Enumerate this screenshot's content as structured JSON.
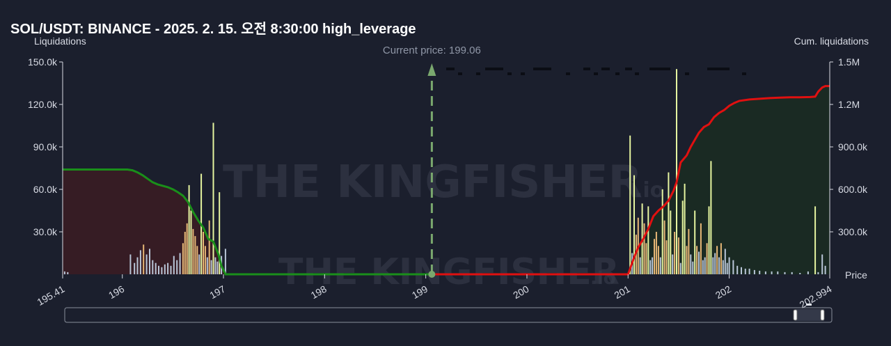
{
  "title": "SOL/USDT: BINANCE - 2025. 2. 15. 오전 8:30:00 high_leverage",
  "watermark": {
    "brand": "THE KINGFISHER",
    "suffix": ".io"
  },
  "chart_data": {
    "type": "bar",
    "title": "SOL/USDT: BINANCE - 2025. 2. 15. 오전 8:30:00 high_leverage",
    "x_range": [
      195.41,
      202.994
    ],
    "x_ticks": [
      "195.41",
      "196",
      "197",
      "198",
      "199",
      "200",
      "201",
      "202",
      "202.994"
    ],
    "y_left": {
      "label": "Liquidations",
      "range": [
        0,
        150000
      ],
      "ticks": [
        "150.0k",
        "120.0k",
        "90.0k",
        "60.0k",
        "30.0k"
      ]
    },
    "y_right": {
      "label": "Cum. liquidations",
      "range": [
        0,
        1500000
      ],
      "ticks": [
        "1.5M",
        "1.2M",
        "900.0k",
        "600.0k",
        "300.0k"
      ],
      "bottom_label": "Price"
    },
    "current_price": {
      "label": "Current price: 199.06",
      "value": 199.06
    },
    "colors": {
      "long_line": "#1a8f1a",
      "long_fill": "#3a1c24",
      "short_line": "#e01010",
      "short_fill": "#1b2b22",
      "bar_high": "#e6f5a0",
      "bar_mid": "#e8b877",
      "bar_low": "#b9c6d8",
      "current_price": "#7aa86e"
    },
    "long_liquidation_bars": {
      "x": [
        195.43,
        195.46,
        196.08,
        196.12,
        196.15,
        196.18,
        196.21,
        196.24,
        196.27,
        196.3,
        196.33,
        196.36,
        196.39,
        196.42,
        196.45,
        196.48,
        196.51,
        196.54,
        196.57,
        196.6,
        196.62,
        196.64,
        196.66,
        196.68,
        196.7,
        196.72,
        196.74,
        196.76,
        196.78,
        196.8,
        196.82,
        196.84,
        196.86,
        196.88,
        196.9,
        196.92,
        196.94,
        196.96,
        196.98,
        197.02
      ],
      "values": [
        2000,
        1500,
        14000,
        8000,
        12000,
        17000,
        21000,
        14000,
        18000,
        10000,
        8000,
        6000,
        5000,
        7000,
        8000,
        6000,
        13000,
        10000,
        15000,
        22000,
        30000,
        36000,
        63000,
        45000,
        32000,
        27000,
        20000,
        14000,
        71000,
        30000,
        20000,
        12000,
        38000,
        10000,
        107000,
        12000,
        9000,
        58000,
        13000,
        18000
      ]
    },
    "short_liquidation_bars": {
      "x": [
        201.02,
        201.04,
        201.06,
        201.08,
        201.1,
        201.12,
        201.14,
        201.16,
        201.18,
        201.2,
        201.22,
        201.24,
        201.26,
        201.28,
        201.3,
        201.32,
        201.34,
        201.36,
        201.38,
        201.4,
        201.42,
        201.44,
        201.46,
        201.48,
        201.5,
        201.52,
        201.54,
        201.56,
        201.58,
        201.6,
        201.62,
        201.64,
        201.66,
        201.68,
        201.7,
        201.72,
        201.74,
        201.76,
        201.78,
        201.8,
        201.82,
        201.84,
        201.86,
        201.88,
        201.9,
        201.92,
        201.94,
        201.96,
        201.98,
        202.0,
        202.04,
        202.08,
        202.12,
        202.16,
        202.2,
        202.25,
        202.3,
        202.36,
        202.42,
        202.48,
        202.55,
        202.62,
        202.7,
        202.78,
        202.85,
        202.88,
        202.92,
        202.95
      ],
      "values": [
        98000,
        15000,
        70000,
        28000,
        40000,
        12000,
        50000,
        36000,
        22000,
        48000,
        10000,
        12000,
        25000,
        30000,
        20000,
        12000,
        60000,
        38000,
        24000,
        72000,
        45000,
        14000,
        30000,
        145000,
        26000,
        8000,
        52000,
        64000,
        20000,
        32000,
        14000,
        9000,
        45000,
        20000,
        16000,
        36000,
        10000,
        12000,
        22000,
        48000,
        80000,
        12000,
        15000,
        20000,
        12000,
        22000,
        10000,
        18000,
        8000,
        12000,
        10000,
        6000,
        5000,
        4000,
        4000,
        3000,
        2500,
        2000,
        2000,
        2000,
        1500,
        1500,
        1000,
        2000,
        48000,
        1500,
        14000,
        6000
      ]
    },
    "cum_long": {
      "x": [
        195.41,
        196.05,
        196.1,
        196.15,
        196.2,
        196.25,
        196.3,
        196.35,
        196.4,
        196.45,
        196.5,
        196.55,
        196.6,
        196.65,
        196.7,
        196.75,
        196.8,
        196.85,
        196.9,
        196.95,
        196.98,
        197.02,
        199.06
      ],
      "values": [
        740000,
        740000,
        735000,
        720000,
        700000,
        675000,
        650000,
        635000,
        625000,
        615000,
        600000,
        580000,
        555000,
        510000,
        440000,
        380000,
        330000,
        250000,
        230000,
        140000,
        60000,
        0,
        0
      ]
    },
    "cum_short": {
      "x": [
        199.06,
        201.0,
        201.02,
        201.06,
        201.1,
        201.15,
        201.2,
        201.25,
        201.3,
        201.35,
        201.4,
        201.45,
        201.48,
        201.52,
        201.58,
        201.62,
        201.66,
        201.7,
        201.75,
        201.8,
        201.85,
        201.9,
        201.95,
        202.0,
        202.05,
        202.1,
        202.2,
        202.3,
        202.4,
        202.5,
        202.6,
        202.7,
        202.8,
        202.85,
        202.88,
        202.92,
        202.95,
        202.994
      ],
      "values": [
        0,
        0,
        40000,
        120000,
        190000,
        250000,
        320000,
        410000,
        450000,
        480000,
        520000,
        590000,
        650000,
        790000,
        840000,
        900000,
        950000,
        1000000,
        1040000,
        1060000,
        1110000,
        1140000,
        1160000,
        1190000,
        1210000,
        1225000,
        1235000,
        1240000,
        1245000,
        1248000,
        1250000,
        1250000,
        1252000,
        1255000,
        1290000,
        1320000,
        1330000,
        1330000
      ]
    },
    "grid": false,
    "legend": "none"
  }
}
